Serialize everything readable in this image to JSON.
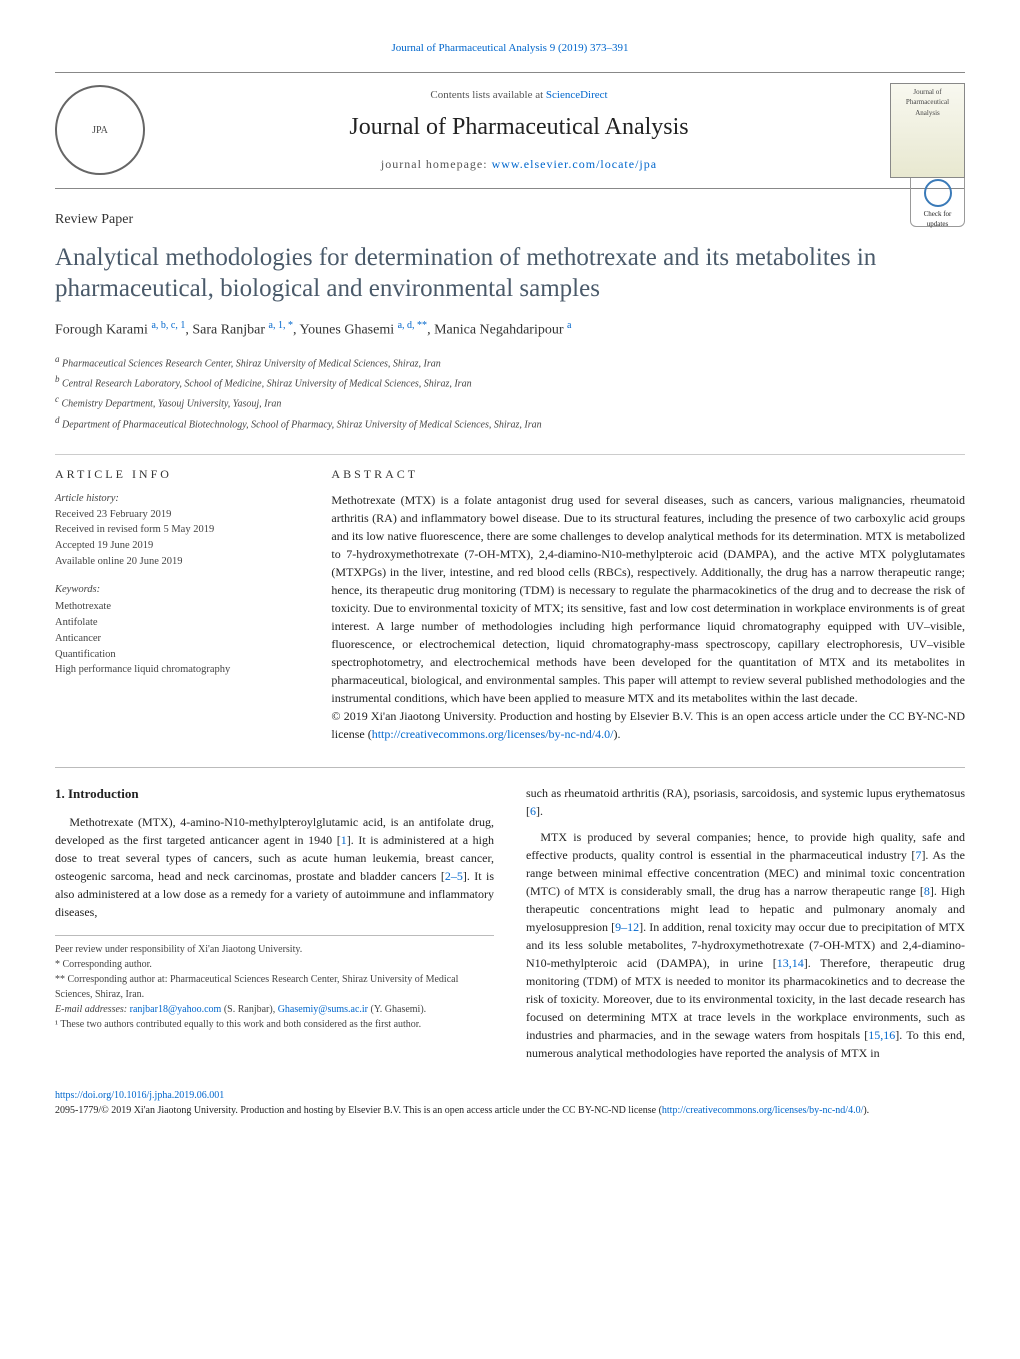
{
  "header": {
    "journal_ref": "Journal of Pharmaceutical Analysis 9 (2019) 373–391",
    "contents_label": "Contents lists available at ",
    "contents_link": "ScienceDirect",
    "journal_name": "Journal of Pharmaceutical Analysis",
    "homepage_label": "journal homepage: ",
    "homepage_url": "www.elsevier.com/locate/jpa",
    "logo_text": "JPA",
    "cover_text": "Journal of Pharmaceutical Analysis"
  },
  "badge": {
    "label": "Check for updates"
  },
  "paper": {
    "type": "Review Paper",
    "title": "Analytical methodologies for determination of methotrexate and its metabolites in pharmaceutical, biological and environmental samples",
    "authors_html": "Forough Karami <sup class=\"auth-sup\">a, b, c, 1</sup>, Sara Ranjbar <sup class=\"auth-sup\">a, 1, *</sup>, Younes Ghasemi <sup class=\"auth-sup\">a, d, **</sup>, Manica Negahdaripour <sup class=\"auth-sup\">a</sup>",
    "affiliations": [
      {
        "sup": "a",
        "text": "Pharmaceutical Sciences Research Center, Shiraz University of Medical Sciences, Shiraz, Iran"
      },
      {
        "sup": "b",
        "text": "Central Research Laboratory, School of Medicine, Shiraz University of Medical Sciences, Shiraz, Iran"
      },
      {
        "sup": "c",
        "text": "Chemistry Department, Yasouj University, Yasouj, Iran"
      },
      {
        "sup": "d",
        "text": "Department of Pharmaceutical Biotechnology, School of Pharmacy, Shiraz University of Medical Sciences, Shiraz, Iran"
      }
    ]
  },
  "article_info": {
    "heading": "ARTICLE INFO",
    "history_label": "Article history:",
    "history": [
      "Received 23 February 2019",
      "Received in revised form 5 May 2019",
      "Accepted 19 June 2019",
      "Available online 20 June 2019"
    ],
    "keywords_label": "Keywords:",
    "keywords": [
      "Methotrexate",
      "Antifolate",
      "Anticancer",
      "Quantification",
      "High performance liquid chromatography"
    ]
  },
  "abstract": {
    "heading": "ABSTRACT",
    "body": "Methotrexate (MTX) is a folate antagonist drug used for several diseases, such as cancers, various malignancies, rheumatoid arthritis (RA) and inflammatory bowel disease. Due to its structural features, including the presence of two carboxylic acid groups and its low native fluorescence, there are some challenges to develop analytical methods for its determination. MTX is metabolized to 7-hydroxymethotrexate (7-OH-MTX), 2,4-diamino-N10-methylpteroic acid (DAMPA), and the active MTX polyglutamates (MTXPGs) in the liver, intestine, and red blood cells (RBCs), respectively. Additionally, the drug has a narrow therapeutic range; hence, its therapeutic drug monitoring (TDM) is necessary to regulate the pharmacokinetics of the drug and to decrease the risk of toxicity. Due to environmental toxicity of MTX; its sensitive, fast and low cost determination in workplace environments is of great interest. A large number of methodologies including high performance liquid chromatography equipped with UV–visible, fluorescence, or electrochemical detection, liquid chromatography-mass spectroscopy, capillary electrophoresis, UV–visible spectrophotometry, and electrochemical methods have been developed for the quantitation of MTX and its metabolites in pharmaceutical, biological, and environmental samples. This paper will attempt to review several published methodologies and the instrumental conditions, which have been applied to measure MTX and its metabolites within the last decade.",
    "copyright": "© 2019 Xi'an Jiaotong University. Production and hosting by Elsevier B.V. This is an open access article under the CC BY-NC-ND license (",
    "cc_url": "http://creativecommons.org/licenses/by-nc-nd/4.0/",
    "copyright_tail": ")."
  },
  "intro": {
    "heading": "1. Introduction",
    "p1": "Methotrexate (MTX), 4-amino-N10-methylpteroylglutamic acid, is an antifolate drug, developed as the first targeted anticancer agent in 1940 [1]. It is administered at a high dose to treat several types of cancers, such as acute human leukemia, breast cancer, osteogenic sarcoma, head and neck carcinomas, prostate and bladder cancers [2–5]. It is also administered at a low dose as a remedy for a variety of autoimmune and inflammatory diseases,",
    "p1b": "such as rheumatoid arthritis (RA), psoriasis, sarcoidosis, and systemic lupus erythematosus [6].",
    "p2": "MTX is produced by several companies; hence, to provide high quality, safe and effective products, quality control is essential in the pharmaceutical industry [7]. As the range between minimal effective concentration (MEC) and minimal toxic concentration (MTC) of MTX is considerably small, the drug has a narrow therapeutic range [8]. High therapeutic concentrations might lead to hepatic and pulmonary anomaly and myelosuppresion [9–12]. In addition, renal toxicity may occur due to precipitation of MTX and its less soluble metabolites, 7-hydroxymethotrexate (7-OH-MTX) and 2,4-diamino-N10-methylpteroic acid (DAMPA), in urine [13,14]. Therefore, therapeutic drug monitoring (TDM) of MTX is needed to monitor its pharmacokinetics and to decrease the risk of toxicity. Moreover, due to its environmental toxicity, in the last decade research has focused on determining MTX at trace levels in the workplace environments, such as industries and pharmacies, and in the sewage waters from hospitals [15,16]. To this end, numerous analytical methodologies have reported the analysis of MTX in"
  },
  "footnotes": {
    "peer": "Peer review under responsibility of Xi'an Jiaotong University.",
    "corr1": "* Corresponding author.",
    "corr2": "** Corresponding author at: Pharmaceutical Sciences Research Center, Shiraz University of Medical Sciences, Shiraz, Iran.",
    "email_label": "E-mail addresses: ",
    "email1": "ranjbar18@yahoo.com",
    "email1_name": " (S. Ranjbar), ",
    "email2": "Ghasemiy@sums.ac.ir",
    "email2_name": " (Y. Ghasemi).",
    "note1": "¹ These two authors contributed equally to this work and both considered as the first author."
  },
  "doi": {
    "url": "https://doi.org/10.1016/j.jpha.2019.06.001",
    "issn_line": "2095-1779/© 2019 Xi'an Jiaotong University. Production and hosting by Elsevier B.V. This is an open access article under the CC BY-NC-ND license (",
    "cc_url": "http://creativecommons.org/licenses/by-nc-nd/4.0/",
    "tail": ")."
  }
}
